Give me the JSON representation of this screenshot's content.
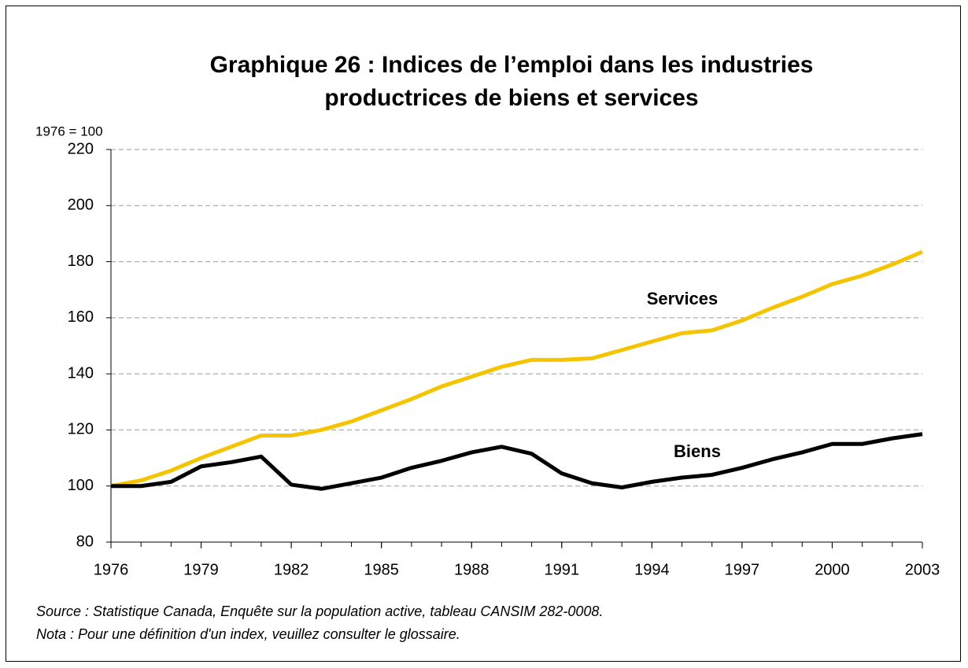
{
  "chart_data": {
    "type": "line",
    "title": "Graphique 26 : Indices de l’emploi dans les industries productrices de biens et services",
    "y_axis_label": "1976 = 100",
    "x": [
      1976,
      1977,
      1978,
      1979,
      1980,
      1981,
      1982,
      1983,
      1984,
      1985,
      1986,
      1987,
      1988,
      1989,
      1990,
      1991,
      1992,
      1993,
      1994,
      1995,
      1996,
      1997,
      1998,
      1999,
      2000,
      2001,
      2002,
      2003
    ],
    "series": [
      {
        "name": "Services",
        "color": "#f5c400",
        "values": [
          100,
          102,
          105.5,
          110,
          114,
          118,
          118,
          120,
          123,
          127,
          131,
          135.5,
          139,
          142.5,
          145,
          145,
          145.5,
          148.5,
          151.5,
          154.5,
          155.5,
          159,
          163.5,
          167.5,
          172,
          175,
          179,
          183.5
        ]
      },
      {
        "name": "Biens",
        "color": "#000000",
        "values": [
          100,
          100,
          101.5,
          107,
          108.5,
          110.5,
          100.5,
          99,
          101,
          103,
          106.5,
          109,
          112,
          114,
          111.5,
          104.5,
          101,
          99.5,
          101.5,
          103,
          104,
          106.5,
          109.5,
          112,
          115,
          115,
          117,
          118.5
        ]
      }
    ],
    "xlim": [
      1976,
      2003
    ],
    "xticks": [
      1976,
      1979,
      1982,
      1985,
      1988,
      1991,
      1994,
      1997,
      2000,
      2003
    ],
    "ylim": [
      80,
      220
    ],
    "yticks": [
      80,
      100,
      120,
      140,
      160,
      180,
      200,
      220
    ],
    "grid": true,
    "notes": [
      "Source : Statistique Canada, Enquête sur la population active, tableau CANSIM 282-0008.",
      "Nota : Pour une définition d'un index, veuillez consulter le glossaire."
    ]
  }
}
